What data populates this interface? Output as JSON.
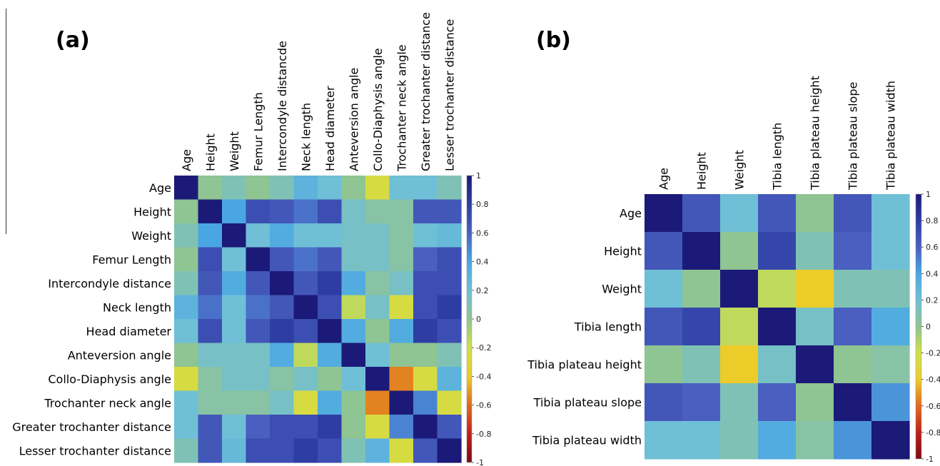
{
  "colorscale": {
    "stops": [
      [
        -1.0,
        "#7a0a12"
      ],
      [
        -0.8,
        "#c0201c"
      ],
      [
        -0.6,
        "#e06a1e"
      ],
      [
        -0.4,
        "#eccc28"
      ],
      [
        -0.2,
        "#cfe04a"
      ],
      [
        0.0,
        "#8fc493"
      ],
      [
        0.2,
        "#6fbfd6"
      ],
      [
        0.4,
        "#4aa6e2"
      ],
      [
        0.6,
        "#4a5fc0"
      ],
      [
        0.8,
        "#2e3da2"
      ],
      [
        1.0,
        "#1b1a78"
      ]
    ]
  },
  "chart_data": [
    {
      "type": "heatmap",
      "panel_label": "(a)",
      "x_labels": [
        "Age",
        "Height",
        "Weight",
        "Femur Length",
        "Intercondyle distancde",
        "Neck length",
        "Head diameter",
        "Anteversion angle",
        "Collo-Diaphysis angle",
        "Trochanter neck angle",
        "Greater trochanter distance",
        "Lesser trochanter distance"
      ],
      "y_labels": [
        "Age",
        "Height",
        "Weight",
        "Femur Length",
        "Intercondyle distance",
        "Neck length",
        "Head diameter",
        "Anteversion angle",
        "Collo-Diaphysis angle",
        "Trochanter neck angle",
        "Greater trochanter distance",
        "Lesser trochanter distance"
      ],
      "values": [
        [
          1.0,
          0.0,
          0.1,
          0.0,
          0.1,
          0.3,
          0.2,
          0.0,
          -0.25,
          0.2,
          0.2,
          0.1
        ],
        [
          0.0,
          1.0,
          0.4,
          0.7,
          0.65,
          0.55,
          0.7,
          0.15,
          0.05,
          0.05,
          0.65,
          0.65
        ],
        [
          0.1,
          0.4,
          1.0,
          0.2,
          0.35,
          0.2,
          0.2,
          0.15,
          0.15,
          0.05,
          0.2,
          0.25
        ],
        [
          0.0,
          0.7,
          0.2,
          1.0,
          0.65,
          0.55,
          0.65,
          0.15,
          0.15,
          0.05,
          0.6,
          0.7
        ],
        [
          0.1,
          0.65,
          0.35,
          0.65,
          1.0,
          0.65,
          0.8,
          0.35,
          0.05,
          0.15,
          0.7,
          0.7
        ],
        [
          0.3,
          0.55,
          0.2,
          0.55,
          0.65,
          1.0,
          0.7,
          -0.15,
          0.15,
          -0.25,
          0.7,
          0.8
        ],
        [
          0.2,
          0.7,
          0.2,
          0.65,
          0.8,
          0.7,
          1.0,
          0.35,
          0.0,
          0.35,
          0.8,
          0.7
        ],
        [
          0.0,
          0.15,
          0.15,
          0.15,
          0.35,
          -0.15,
          0.35,
          1.0,
          0.2,
          0.0,
          0.0,
          0.1
        ],
        [
          -0.25,
          0.05,
          0.15,
          0.15,
          0.05,
          0.15,
          0.0,
          0.2,
          1.0,
          -0.55,
          -0.25,
          0.3
        ],
        [
          0.2,
          0.05,
          0.05,
          0.05,
          0.15,
          -0.25,
          0.35,
          0.0,
          -0.55,
          1.0,
          0.5,
          -0.25
        ],
        [
          0.2,
          0.65,
          0.2,
          0.6,
          0.7,
          0.7,
          0.8,
          0.0,
          -0.25,
          0.5,
          1.0,
          0.65
        ],
        [
          0.1,
          0.65,
          0.25,
          0.7,
          0.7,
          0.8,
          0.7,
          0.1,
          0.3,
          -0.25,
          0.65,
          1.0
        ]
      ],
      "colorbar_ticks": [
        "1",
        "0.8",
        "0.6",
        "0.4",
        "0.2",
        "0",
        "-0.2",
        "-0.4",
        "-0.6",
        "-0.8",
        "-1"
      ]
    },
    {
      "type": "heatmap",
      "panel_label": "(b)",
      "x_labels": [
        "Age",
        "Height",
        "Weight",
        "Tibia length",
        "Tibia plateau height",
        "Tibia plateau slope",
        "Tibia plateau width"
      ],
      "y_labels": [
        "Age",
        "Height",
        "Weight",
        "Tibia length",
        "Tibia plateau height",
        "Tibia plateau slope",
        "Tibia plateau width"
      ],
      "values": [
        [
          1.0,
          0.65,
          0.2,
          0.65,
          0.0,
          0.65,
          0.2
        ],
        [
          0.65,
          1.0,
          0.0,
          0.75,
          0.1,
          0.6,
          0.2
        ],
        [
          0.2,
          0.0,
          1.0,
          -0.15,
          -0.4,
          0.1,
          0.1
        ],
        [
          0.65,
          0.75,
          -0.15,
          1.0,
          0.15,
          0.6,
          0.35
        ],
        [
          0.0,
          0.1,
          -0.4,
          0.15,
          1.0,
          0.0,
          0.05
        ],
        [
          0.65,
          0.6,
          0.1,
          0.6,
          0.0,
          1.0,
          0.45
        ],
        [
          0.2,
          0.2,
          0.1,
          0.35,
          0.05,
          0.45,
          1.0
        ]
      ],
      "colorbar_ticks": [
        "1",
        "0.8",
        "0.6",
        "0.4",
        "0.2",
        "0",
        "-0.2",
        "-0.4",
        "-0.6",
        "-0.8",
        "-1"
      ]
    }
  ]
}
